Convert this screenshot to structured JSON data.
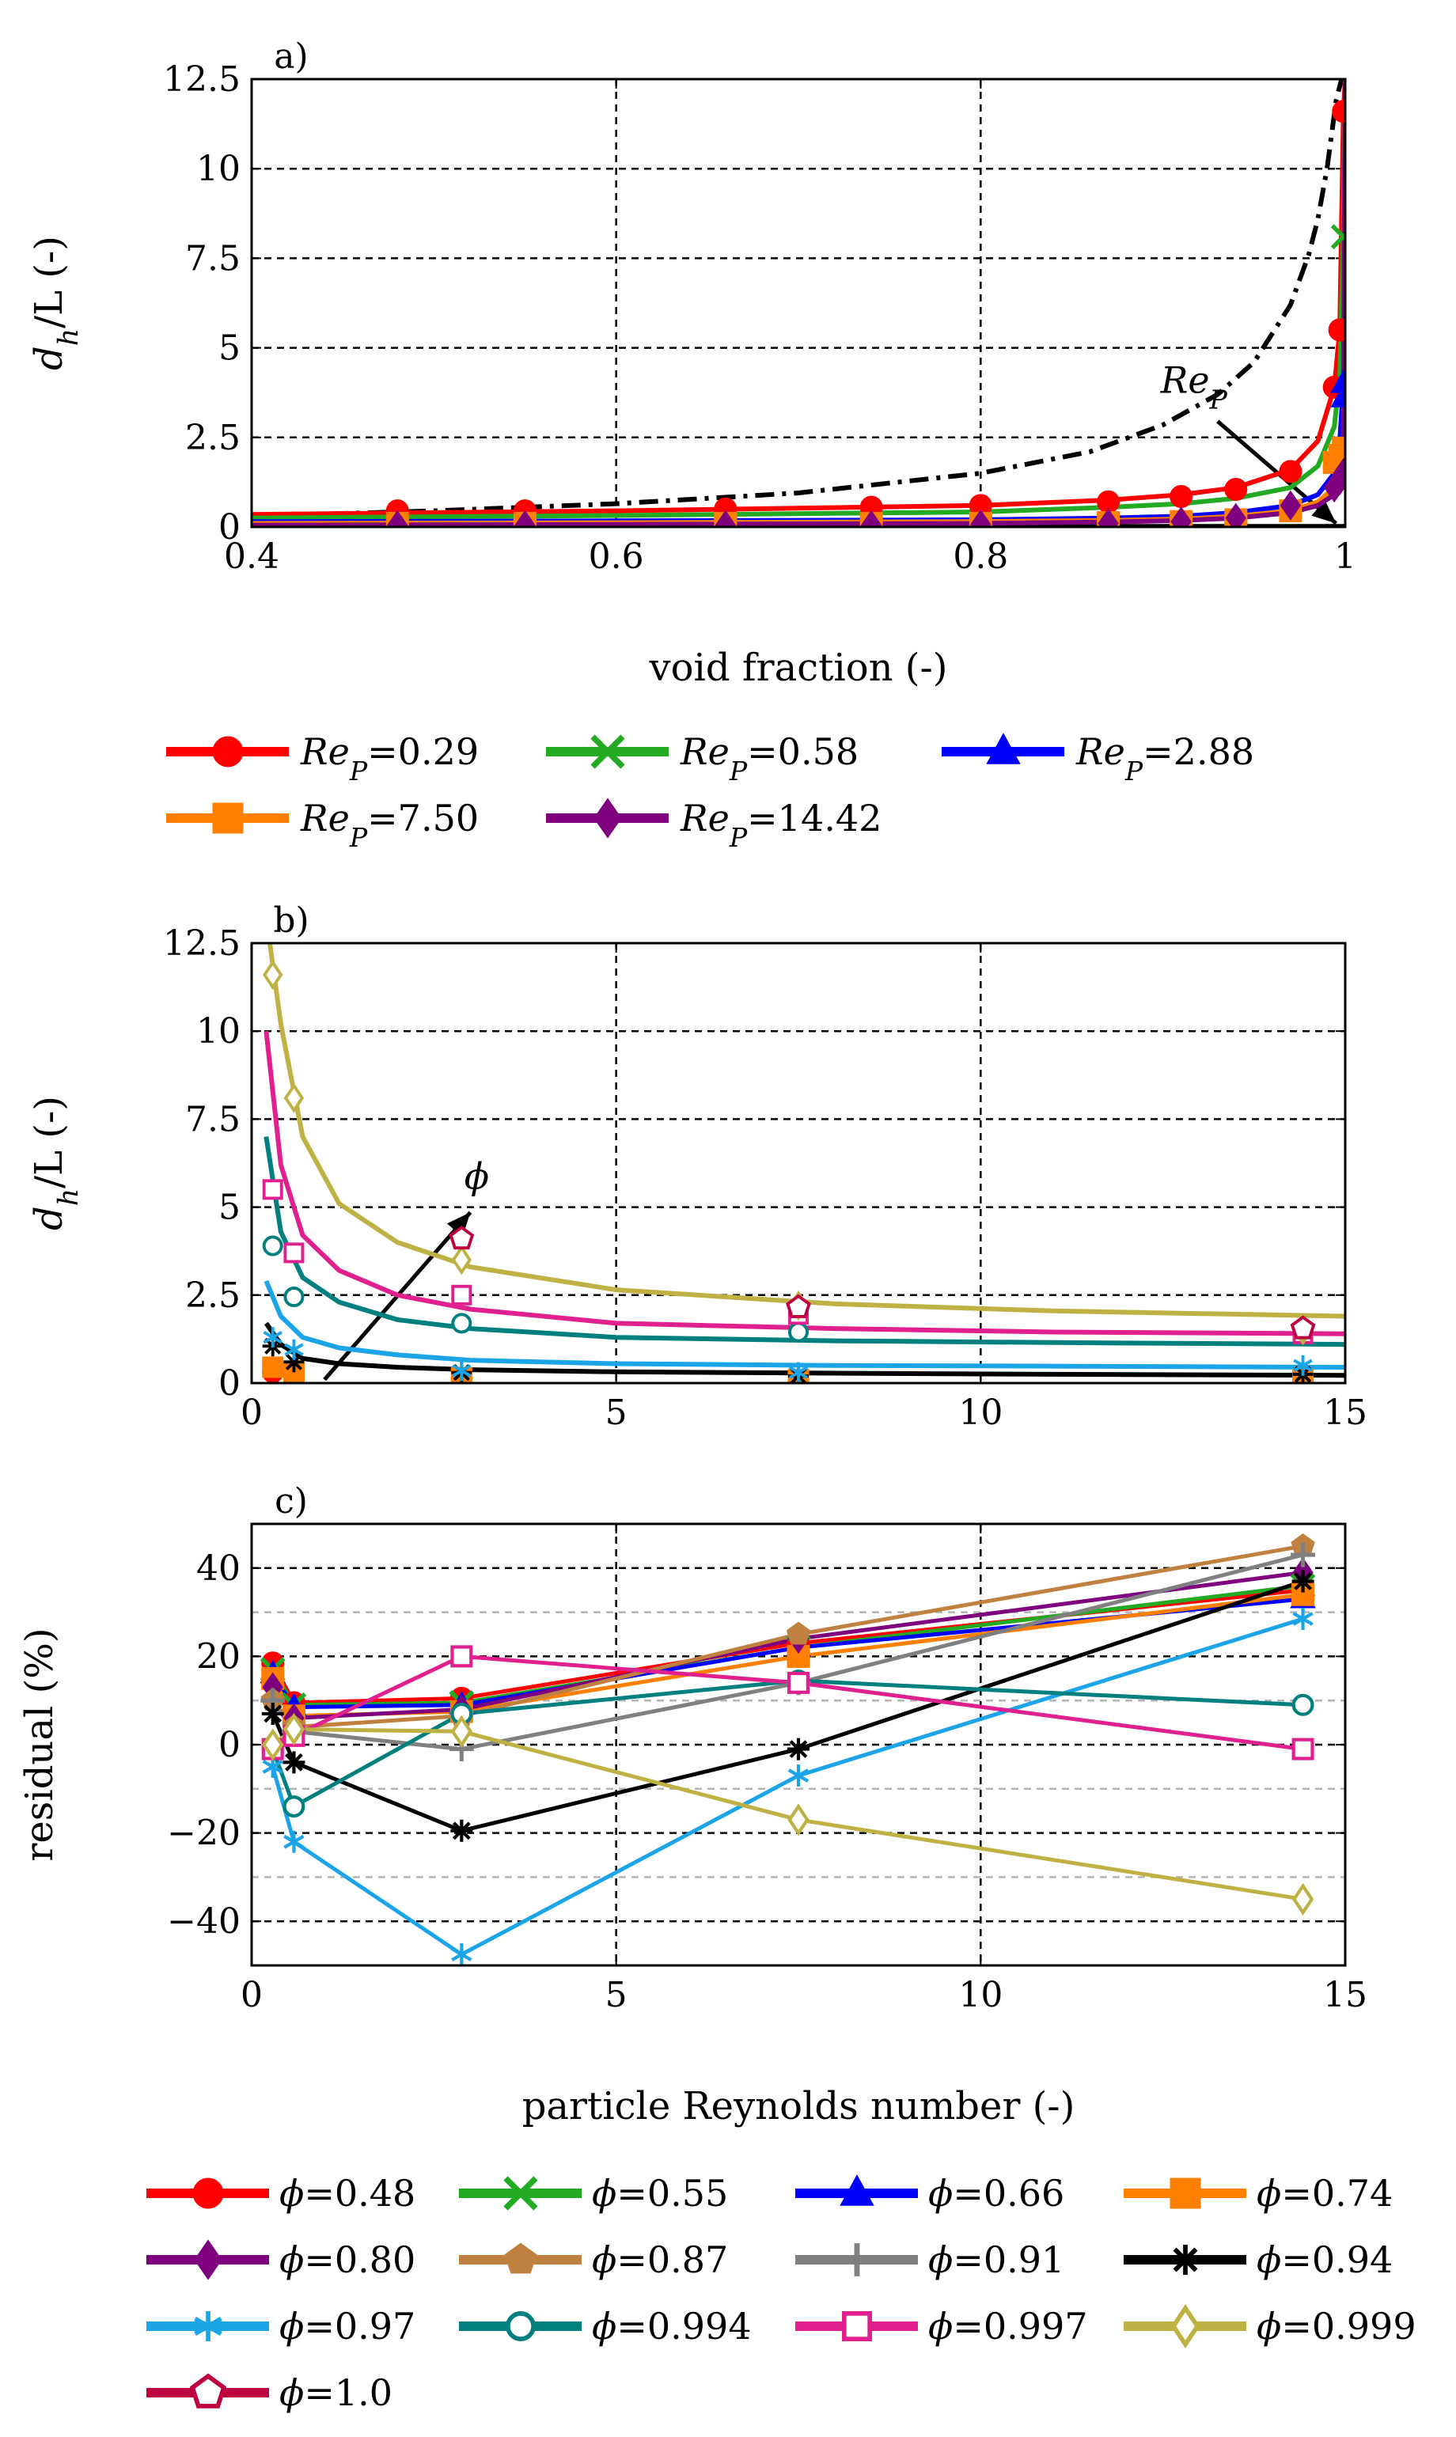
{
  "colors": {
    "p0.29": "#ff0000",
    "p0.58": "#22aa22",
    "p2.88": "#0000ff",
    "p7.50": "#ff7f00",
    "p14.42": "#7f007f",
    "phi0.48": "#ff0000",
    "phi0.55": "#22aa22",
    "phi0.66": "#0000ff",
    "phi0.74": "#ff7f00",
    "phi0.80": "#7f007f",
    "phi0.87": "#c08040",
    "phi0.91": "#808080",
    "phi0.94": "#000000",
    "phi0.97": "#1ba5e8",
    "phi0.994": "#007f7f",
    "phi0.997": "#e0208f",
    "phi0.999": "#bfb244",
    "phi1.0": "#bf0040"
  },
  "chart_data": [
    {
      "type": "line",
      "panel_label": "a)",
      "xlabel": "void fraction (-)",
      "ylabel": "d_h/L (-)",
      "ylabel_main": "d",
      "ylabel_sub": "h",
      "ylabel_rest": "/L (-)",
      "xlim": [
        0.4,
        1.0
      ],
      "ylim": [
        0,
        12.5
      ],
      "xticks": [
        0.4,
        0.6,
        0.8,
        1.0
      ],
      "xtick_labels": [
        "0.4",
        "0.6",
        "0.8",
        "1"
      ],
      "yticks": [
        0,
        2.5,
        5,
        7.5,
        10,
        12.5
      ],
      "ytick_labels": [
        "0",
        "2.5",
        "5",
        "7.5",
        "10",
        "12.5"
      ],
      "grid": true,
      "legend_position": "bottom",
      "legend_prefix_main": "Re",
      "legend_prefix_sub": "P",
      "annotation": {
        "text_main": "Re",
        "text_sub": "P",
        "arrow_from": [
          0.93,
          2.95
        ],
        "arrow_to": [
          0.995,
          0.1
        ]
      },
      "reference_curve": {
        "style": "dash-dot",
        "color": "#000000",
        "x": [
          0.4,
          0.5,
          0.6,
          0.7,
          0.8,
          0.86,
          0.9,
          0.93,
          0.95,
          0.97,
          0.98,
          0.985,
          0.99,
          0.995,
          0.998
        ],
        "y": [
          0.3,
          0.45,
          0.65,
          0.95,
          1.5,
          2.1,
          2.85,
          3.7,
          4.6,
          6.2,
          7.6,
          8.6,
          10.0,
          11.9,
          12.5
        ]
      },
      "series": [
        {
          "name": "0.29",
          "marker": "circle",
          "color_key": "p0.29",
          "curve_x": [
            0.4,
            0.6,
            0.8,
            0.87,
            0.91,
            0.94,
            0.97,
            0.985,
            0.994,
            0.997,
            0.999,
            1.0
          ],
          "curve_y": [
            0.35,
            0.45,
            0.6,
            0.75,
            0.9,
            1.1,
            1.6,
            2.4,
            3.9,
            5.5,
            11.6,
            12.5
          ],
          "x": [
            0.48,
            0.55,
            0.66,
            0.74,
            0.8,
            0.87,
            0.91,
            0.94,
            0.97,
            0.994,
            0.997,
            0.999
          ],
          "y": [
            0.45,
            0.45,
            0.5,
            0.55,
            0.6,
            0.7,
            0.85,
            1.05,
            1.55,
            3.9,
            5.5,
            11.6
          ]
        },
        {
          "name": "0.58",
          "marker": "x",
          "color_key": "p0.58",
          "curve_x": [
            0.4,
            0.6,
            0.8,
            0.87,
            0.91,
            0.94,
            0.97,
            0.985,
            0.994,
            0.997,
            0.999,
            1.0
          ],
          "curve_y": [
            0.25,
            0.32,
            0.42,
            0.55,
            0.65,
            0.8,
            1.1,
            1.7,
            2.8,
            4.2,
            8.1,
            12.5
          ],
          "x": [
            0.999
          ],
          "y": [
            8.1
          ]
        },
        {
          "name": "2.88",
          "marker": "triangle",
          "color_key": "p2.88",
          "curve_x": [
            0.4,
            0.6,
            0.8,
            0.87,
            0.91,
            0.94,
            0.97,
            0.985,
            0.994,
            0.997,
            0.999,
            1.0
          ],
          "curve_y": [
            0.15,
            0.17,
            0.2,
            0.25,
            0.3,
            0.4,
            0.6,
            0.9,
            1.5,
            2.4,
            4.0,
            12.5
          ],
          "x": [
            0.999,
            0.999
          ],
          "y": [
            4.0,
            3.6
          ]
        },
        {
          "name": "7.50",
          "marker": "square",
          "color_key": "p7.50",
          "curve_x": [
            0.4,
            0.6,
            0.8,
            0.87,
            0.91,
            0.94,
            0.97,
            0.985,
            0.994,
            0.997,
            0.999,
            1.0
          ],
          "curve_y": [
            0.1,
            0.12,
            0.15,
            0.18,
            0.22,
            0.3,
            0.45,
            0.7,
            1.1,
            1.5,
            2.2,
            12.5
          ],
          "x": [
            0.48,
            0.55,
            0.66,
            0.74,
            0.8,
            0.87,
            0.91,
            0.94,
            0.97,
            0.994,
            0.997,
            0.999
          ],
          "y": [
            0.1,
            0.1,
            0.1,
            0.1,
            0.1,
            0.12,
            0.15,
            0.2,
            0.45,
            1.8,
            2.0,
            2.2
          ]
        },
        {
          "name": "14.42",
          "marker": "diamond",
          "color_key": "p14.42",
          "curve_x": [
            0.4,
            0.6,
            0.8,
            0.87,
            0.91,
            0.94,
            0.97,
            0.985,
            0.994,
            0.997,
            0.999,
            1.0
          ],
          "curve_y": [
            0.05,
            0.07,
            0.1,
            0.14,
            0.18,
            0.25,
            0.4,
            0.6,
            0.9,
            1.2,
            1.5,
            12.5
          ],
          "x": [
            0.48,
            0.55,
            0.66,
            0.74,
            0.8,
            0.87,
            0.91,
            0.94,
            0.97,
            0.994,
            0.997,
            0.999
          ],
          "y": [
            0.05,
            0.05,
            0.05,
            0.05,
            0.07,
            0.1,
            0.15,
            0.25,
            0.6,
            1.1,
            1.3,
            1.5
          ]
        }
      ]
    },
    {
      "type": "line",
      "panel_label": "b)",
      "xlabel": "",
      "ylabel": "d_h/L (-)",
      "ylabel_main": "d",
      "ylabel_sub": "h",
      "ylabel_rest": "/L (-)",
      "xlim": [
        0,
        15
      ],
      "ylim": [
        0,
        12.5
      ],
      "xticks": [
        0,
        5,
        10,
        15
      ],
      "xtick_labels": [
        "0",
        "5",
        "10",
        "15"
      ],
      "yticks": [
        0,
        2.5,
        5,
        7.5,
        10,
        12.5
      ],
      "ytick_labels": [
        "0",
        "2.5",
        "5",
        "7.5",
        "10",
        "12.5"
      ],
      "grid": true,
      "annotation": {
        "text": "ϕ",
        "arrow_from": [
          1.0,
          0.1
        ],
        "arrow_to": [
          3.0,
          4.85
        ]
      },
      "series": [
        {
          "name": "0.48",
          "color_key": "phi0.48",
          "marker": "circle",
          "x": [
            0.29,
            0.58,
            2.88,
            7.5,
            14.42
          ],
          "y": [
            0.3,
            0.2,
            0.1,
            0.08,
            0.06
          ]
        },
        {
          "name": "0.74",
          "color_key": "phi0.74",
          "marker": "square",
          "x": [
            0.29,
            0.58,
            2.88,
            7.5,
            14.42
          ],
          "y": [
            0.45,
            0.3,
            0.15,
            0.1,
            0.1
          ]
        },
        {
          "name": "0.94",
          "color_key": "phi0.94",
          "marker": "star",
          "curve_x": [
            0.2,
            0.4,
            0.7,
            1.2,
            2.0,
            3.0,
            5.0,
            8.0,
            11.0,
            15.0
          ],
          "curve_y": [
            1.7,
            1.1,
            0.7,
            0.55,
            0.45,
            0.38,
            0.32,
            0.28,
            0.25,
            0.22
          ],
          "x": [
            0.29,
            0.58,
            2.88,
            7.5,
            14.42
          ],
          "y": [
            1.05,
            0.6,
            0.3,
            0.2,
            0.25
          ]
        },
        {
          "name": "0.97",
          "color_key": "phi0.97",
          "marker": "asterisk",
          "curve_x": [
            0.2,
            0.4,
            0.7,
            1.2,
            2.0,
            3.0,
            5.0,
            8.0,
            11.0,
            15.0
          ],
          "curve_y": [
            2.9,
            1.9,
            1.3,
            1.0,
            0.8,
            0.65,
            0.55,
            0.5,
            0.48,
            0.45
          ],
          "x": [
            0.29,
            0.58,
            2.88,
            7.5,
            14.42
          ],
          "y": [
            1.3,
            0.95,
            0.35,
            0.3,
            0.5
          ]
        },
        {
          "name": "0.994",
          "color_key": "phi0.994",
          "marker": "circle-open",
          "curve_x": [
            0.2,
            0.4,
            0.7,
            1.2,
            2.0,
            3.0,
            5.0,
            8.0,
            11.0,
            15.0
          ],
          "curve_y": [
            7.0,
            4.3,
            3.0,
            2.3,
            1.8,
            1.55,
            1.3,
            1.2,
            1.15,
            1.1
          ],
          "x": [
            0.29,
            0.58,
            2.88,
            7.5,
            14.42
          ],
          "y": [
            3.9,
            2.45,
            1.7,
            1.45,
            1.35
          ]
        },
        {
          "name": "0.997",
          "color_key": "phi0.997",
          "marker": "square-open",
          "curve_x": [
            0.2,
            0.4,
            0.7,
            1.2,
            2.0,
            3.0,
            5.0,
            8.0,
            11.0,
            15.0
          ],
          "curve_y": [
            10.0,
            6.2,
            4.2,
            3.2,
            2.5,
            2.1,
            1.7,
            1.55,
            1.45,
            1.4
          ],
          "x": [
            0.29,
            0.58,
            2.88,
            7.5,
            14.42
          ],
          "y": [
            5.5,
            3.7,
            2.5,
            1.95,
            1.4
          ]
        },
        {
          "name": "0.999",
          "color_key": "phi0.999",
          "marker": "diamond-open",
          "curve_x": [
            0.25,
            0.4,
            0.7,
            1.2,
            2.0,
            3.0,
            5.0,
            8.0,
            11.0,
            15.0
          ],
          "curve_y": [
            12.5,
            10.2,
            7.0,
            5.1,
            4.0,
            3.3,
            2.65,
            2.25,
            2.05,
            1.9
          ],
          "x": [
            0.29,
            0.58,
            2.88,
            7.5,
            14.42
          ],
          "y": [
            11.6,
            8.1,
            3.5,
            2.2,
            1.5
          ]
        },
        {
          "name": "1.0",
          "color_key": "phi1.0",
          "marker": "pentagon-open",
          "x": [
            2.88,
            7.5,
            14.42
          ],
          "y": [
            4.1,
            2.15,
            1.55
          ]
        }
      ]
    },
    {
      "type": "line",
      "panel_label": "c)",
      "xlabel": "particle Reynolds number (-)",
      "ylabel": "residual (%)",
      "xlim": [
        0,
        15
      ],
      "ylim": [
        -50,
        50
      ],
      "xticks": [
        0,
        5,
        10,
        15
      ],
      "xtick_labels": [
        "0",
        "5",
        "10",
        "15"
      ],
      "yticks": [
        -40,
        -20,
        0,
        20,
        40
      ],
      "ytick_labels": [
        "−40",
        "−20",
        "0",
        "20",
        "40"
      ],
      "grid": true,
      "minor_grid_y": [
        -30,
        -10,
        10,
        30
      ],
      "legend_position": "bottom",
      "legend_prefix": "ϕ",
      "series": [
        {
          "name": "0.48",
          "color_key": "phi0.48",
          "marker": "circle",
          "x": [
            0.29,
            0.58,
            2.88,
            7.5,
            14.42
          ],
          "y": [
            18.5,
            9.5,
            10.5,
            23,
            35
          ]
        },
        {
          "name": "0.55",
          "color_key": "phi0.55",
          "marker": "x",
          "x": [
            0.29,
            0.58,
            2.88,
            7.5,
            14.42
          ],
          "y": [
            17,
            9,
            9.5,
            22,
            36
          ]
        },
        {
          "name": "0.66",
          "color_key": "phi0.66",
          "marker": "triangle",
          "x": [
            0.29,
            0.58,
            2.88,
            7.5,
            14.42
          ],
          "y": [
            16,
            8.5,
            9,
            22,
            33
          ]
        },
        {
          "name": "0.74",
          "color_key": "phi0.74",
          "marker": "square",
          "x": [
            0.29,
            0.58,
            2.88,
            7.5,
            14.42
          ],
          "y": [
            15,
            6.5,
            7.5,
            20,
            34
          ]
        },
        {
          "name": "0.80",
          "color_key": "phi0.80",
          "marker": "diamond",
          "x": [
            0.29,
            0.58,
            2.88,
            7.5,
            14.42
          ],
          "y": [
            13,
            6,
            8,
            24,
            39
          ]
        },
        {
          "name": "0.87",
          "color_key": "phi0.87",
          "marker": "pentagon",
          "x": [
            0.29,
            0.58,
            2.88,
            7.5,
            14.42
          ],
          "y": [
            10,
            4,
            6.5,
            25,
            45
          ]
        },
        {
          "name": "0.91",
          "color_key": "phi0.91",
          "marker": "plus",
          "x": [
            0.29,
            0.58,
            2.88,
            7.5,
            14.42
          ],
          "y": [
            10,
            3,
            -1,
            14,
            43
          ]
        },
        {
          "name": "0.94",
          "color_key": "phi0.94",
          "marker": "star",
          "x": [
            0.29,
            0.58,
            2.88,
            7.5,
            14.42
          ],
          "y": [
            7,
            -4,
            -19.5,
            -1,
            37
          ]
        },
        {
          "name": "0.97",
          "color_key": "phi0.97",
          "marker": "asterisk",
          "x": [
            0.29,
            0.58,
            2.88,
            7.5,
            14.42
          ],
          "y": [
            -5,
            -22,
            -47.5,
            -7,
            28.5
          ]
        },
        {
          "name": "0.994",
          "color_key": "phi0.994",
          "marker": "circle-open",
          "x": [
            0.29,
            0.58,
            2.88,
            7.5,
            14.42
          ],
          "y": [
            -1,
            -14,
            7,
            14.5,
            9
          ]
        },
        {
          "name": "0.997",
          "color_key": "phi0.997",
          "marker": "square-open",
          "x": [
            0.29,
            0.58,
            2.88,
            7.5,
            14.42
          ],
          "y": [
            -1,
            2,
            20,
            14,
            -1
          ]
        },
        {
          "name": "0.999",
          "color_key": "phi0.999",
          "marker": "diamond-open",
          "x": [
            0.29,
            0.58,
            2.88,
            7.5,
            14.42
          ],
          "y": [
            0,
            3.5,
            3,
            -17,
            -35
          ]
        },
        {
          "name": "1.0",
          "color_key": "phi1.0",
          "marker": "pentagon-open",
          "x": [],
          "y": []
        }
      ]
    }
  ]
}
